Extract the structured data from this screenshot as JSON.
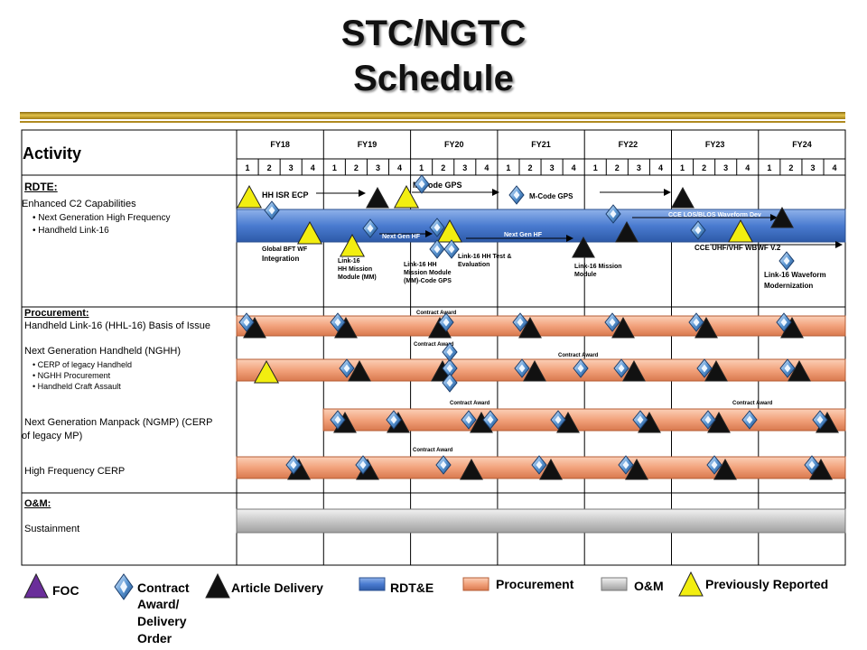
{
  "page": {
    "title_line1": "STC/NGTC",
    "title_line2": "Schedule"
  },
  "header": {
    "activity_label": "Activity",
    "fiscal_years": [
      "FY18",
      "FY19",
      "FY20",
      "FY21",
      "FY22",
      "FY23",
      "FY24"
    ],
    "quarters": [
      "1",
      "2",
      "3",
      "4"
    ]
  },
  "sections": {
    "rdte": {
      "label": "RDTE:",
      "lines": [
        "Enhanced C2 Capabilities",
        "• Next Generation High Frequency",
        "• Handheld Link-16"
      ]
    },
    "procurement": {
      "label": "Procurement:",
      "hhl16": "Handheld Link-16 (HHL-16) Basis of Issue",
      "ngh": "Next Generation Handheld (NGHH)",
      "ngh_sub": [
        "• CERP  of legacy Handheld",
        "• NGHH  Procurement",
        "• Handheld Craft Assault"
      ],
      "ngmp_line1": "Next Generation Manpack (NGMP) (CERP",
      "ngmp_line2": "of legacy MP)",
      "hf": "High Frequency CERP"
    },
    "om": {
      "label": "O&M:",
      "sustain": "Sustainment"
    }
  },
  "annotations": {
    "hh_isr_ecp": "HH ISR ECP",
    "m_code_gps_top": "M-Code GPS",
    "m_code_gps_mid": "M-Code GPS",
    "cce_los": "CCE LOS/BLOS Waveform Dev",
    "next_gen_hf_1": "Next Gen HF",
    "next_gen_hf_2": "Next Gen HF",
    "global_bft_1": "Global BFT WF",
    "global_bft_2": "Integration",
    "link16_mm_1": "Link-16",
    "link16_mm_2": "HH Mission",
    "link16_mm_3": "Module (MM)",
    "link16_hh_mm_1": "Link-16 HH",
    "link16_hh_mm_2": "Mission Module",
    "link16_hh_mm_3": "(MM)-Code GPS",
    "link16_test_1": "Link-16 HH Test &",
    "link16_test_2": "Evaluation",
    "link16_mission_1": "Link-16 Mission",
    "link16_mission_2": "Module",
    "cce_uhf": "CCE UHF/VHF WBWF V.2",
    "link16_wf_1": "Link-16 Waveform",
    "link16_wf_2": "Modernization",
    "contract_award": "Contract Award"
  },
  "legend": {
    "foc": "FOC",
    "contract_1": "Contract",
    "contract_2": "Award/",
    "contract_3": "Delivery",
    "contract_4": "Order",
    "article": "Article Delivery",
    "rdte": "RDT&E",
    "procurement": "Procurement",
    "om": "O&M",
    "prev": "Previously Reported"
  },
  "colors": {
    "rdte_bar": "#4a7bd0",
    "procurement_bar": "#f2a27c",
    "om_bar": "#c8c8c8",
    "previously_reported": "#f2ee10",
    "article_delivery": "#111111",
    "foc": "#6a2e9a",
    "contract_award": "#2f6fb0"
  },
  "chart_data": {
    "type": "gantt",
    "x_axis": [
      "FY18",
      "FY19",
      "FY20",
      "FY21",
      "FY22",
      "FY23",
      "FY24"
    ],
    "bars": [
      {
        "activity": "RDTE",
        "kind": "RDT&E",
        "start": "FY18 Q1",
        "end": "FY24 Q4"
      },
      {
        "activity": "Handheld Link-16 (HHL-16) Basis of Issue",
        "kind": "Procurement",
        "start": "FY18 Q1",
        "end": "FY24 Q4"
      },
      {
        "activity": "Next Generation Handheld (NGHH)",
        "kind": "Procurement",
        "start": "FY18 Q1",
        "end": "FY24 Q4"
      },
      {
        "activity": "Next Generation Manpack (NGMP) (CERP of legacy MP)",
        "kind": "Procurement",
        "start": "FY19 Q1",
        "end": "FY24 Q4"
      },
      {
        "activity": "High Frequency CERP",
        "kind": "Procurement",
        "start": "FY18 Q1",
        "end": "FY24 Q4"
      },
      {
        "activity": "Sustainment",
        "kind": "O&M",
        "start": "FY18 Q1",
        "end": "FY24 Q4"
      }
    ]
  }
}
